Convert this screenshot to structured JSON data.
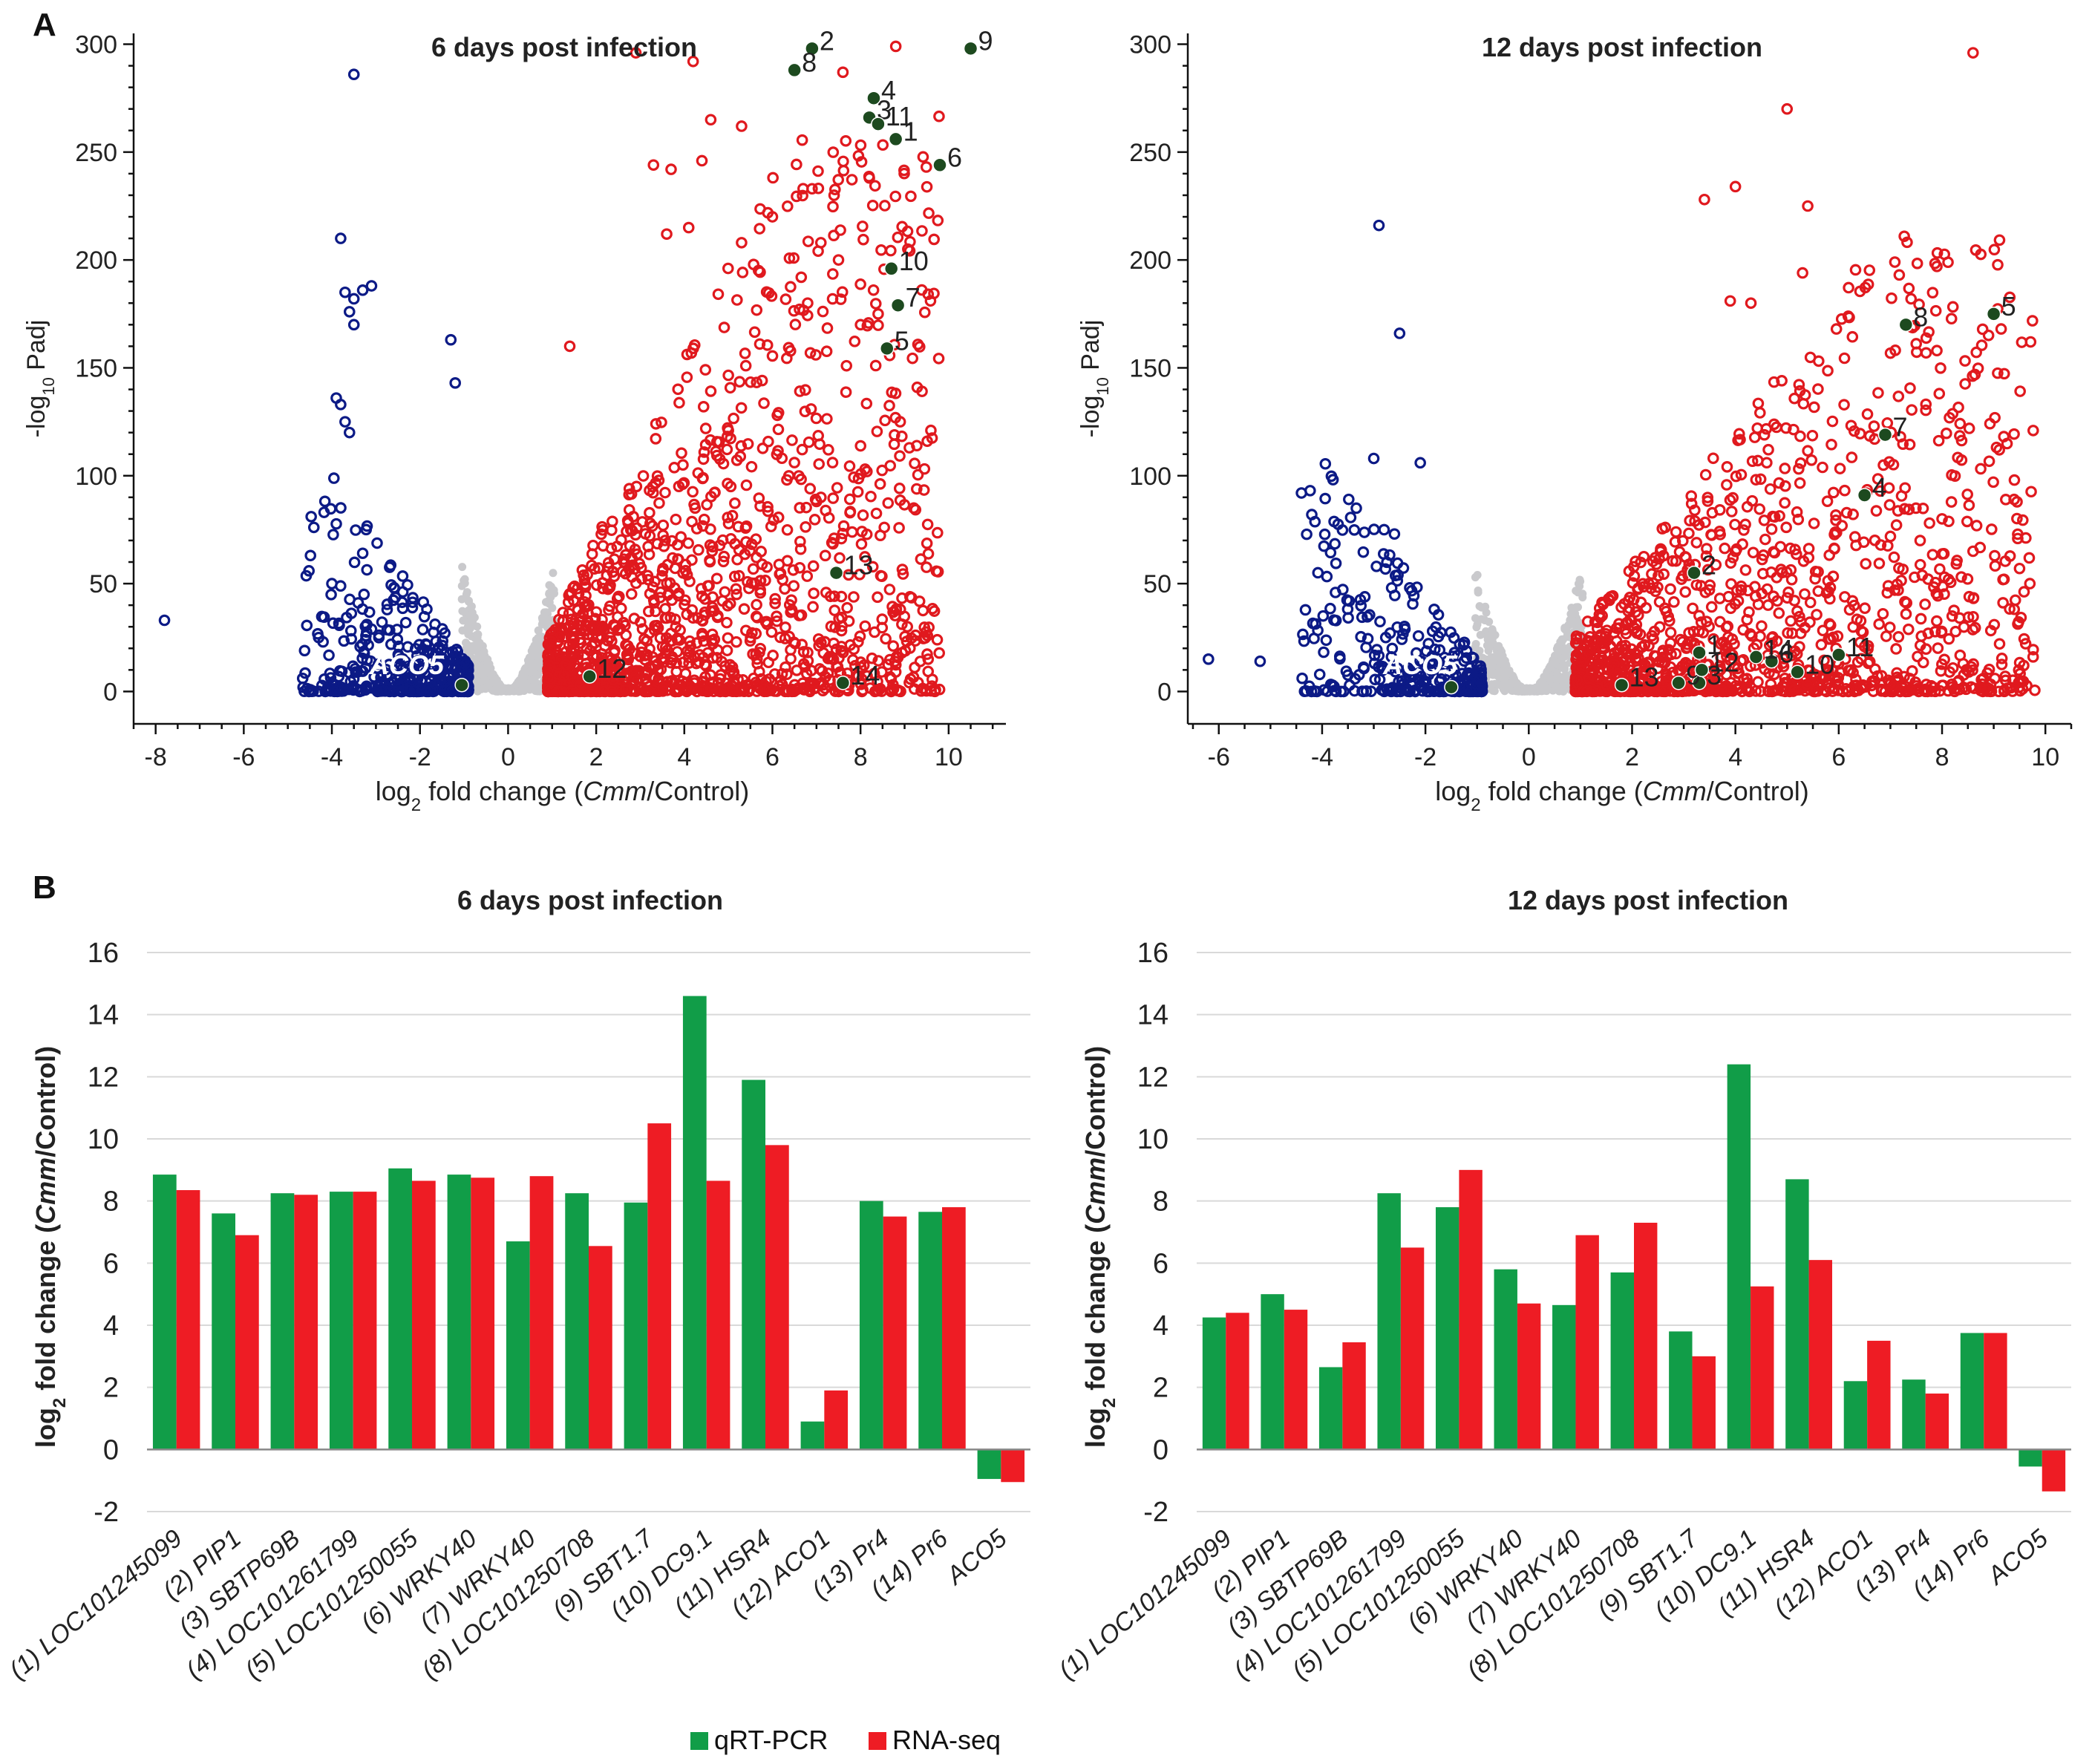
{
  "colors": {
    "up": "#e0191e",
    "down": "#0c1a86",
    "ns": "#c9c9cc",
    "highlight": "#1d4a1f",
    "qrt": "#119d48",
    "rnaseq": "#ee1c24",
    "axis": "#111111",
    "grid": "#d9d9d9"
  },
  "panel_labels": {
    "a": "A",
    "b": "B"
  },
  "genes": [
    "(1) LOC101245099",
    "(2) PIP1",
    "(3) SBTP69B",
    "(4) LOC101261799",
    "(5) LOC101250055",
    "(6) WRKY40",
    "(7) WRKY40",
    "(8) LOC101250708",
    "(9) SBT1.7",
    "(10) DC9.1",
    "(11) HSR4",
    "(12) ACO1",
    "(13) Pr4",
    "(14) Pr6",
    "ACO5"
  ],
  "legend": {
    "qrt": "qRT-PCR",
    "rnaseq": "RNA-seq"
  },
  "chart_data": [
    {
      "type": "scatter",
      "title": "6 days post infection",
      "xlabel_pre": "log",
      "xlabel_sub": "2",
      "xlabel_mid": " fold change (",
      "xlabel_italic": "Cmm",
      "xlabel_post": "/Control)",
      "ylabel_pre": "-log",
      "ylabel_sub": "10",
      "ylabel_post": " Padj",
      "xlim": [
        -8.5,
        11.3
      ],
      "ylim": [
        -15,
        305
      ],
      "xticks": [
        -8,
        -6,
        -4,
        -2,
        0,
        2,
        4,
        6,
        8,
        10
      ],
      "yticks": [
        0,
        50,
        100,
        150,
        200,
        250,
        300
      ],
      "gene_label": "ACO5",
      "gene_label_pos": [
        -2.3,
        8
      ],
      "highlights": [
        {
          "x": 8.8,
          "y": 256,
          "label": "1"
        },
        {
          "x": 6.9,
          "y": 298,
          "label": "2"
        },
        {
          "x": 8.2,
          "y": 266,
          "label": "3"
        },
        {
          "x": 8.3,
          "y": 275,
          "label": "4"
        },
        {
          "x": 8.6,
          "y": 159,
          "label": "5"
        },
        {
          "x": 9.8,
          "y": 244,
          "label": "6"
        },
        {
          "x": 8.85,
          "y": 179,
          "label": "7"
        },
        {
          "x": 6.5,
          "y": 288,
          "label": "8"
        },
        {
          "x": 10.5,
          "y": 298,
          "label": "9"
        },
        {
          "x": 8.7,
          "y": 196,
          "label": "10"
        },
        {
          "x": 8.4,
          "y": 263,
          "label": "11"
        },
        {
          "x": 1.85,
          "y": 7,
          "label": "12"
        },
        {
          "x": 7.45,
          "y": 55,
          "label": "13"
        },
        {
          "x": 7.6,
          "y": 4,
          "label": "14"
        },
        {
          "x": -1.05,
          "y": 3,
          "label": ""
        }
      ],
      "cloud": {
        "down_min": -4.7,
        "up_max": 9.8,
        "ns": 0.9,
        "up_n": 1500,
        "down_n": 430,
        "seed": 7
      },
      "up_outliers": [
        [
          2.9,
          296
        ],
        [
          4.2,
          292
        ],
        [
          8.8,
          299
        ],
        [
          7.6,
          287
        ],
        [
          5.3,
          262
        ],
        [
          4.6,
          265
        ],
        [
          3.3,
          244
        ],
        [
          3.7,
          242
        ],
        [
          4.4,
          246
        ],
        [
          6.9,
          233
        ],
        [
          7.4,
          230
        ],
        [
          8.2,
          238
        ],
        [
          6.0,
          220
        ],
        [
          5.3,
          208
        ],
        [
          4.1,
          215
        ],
        [
          3.6,
          212
        ],
        [
          7.1,
          208
        ],
        [
          7.5,
          200
        ],
        [
          6.8,
          180
        ],
        [
          8.4,
          175
        ],
        [
          1.4,
          160
        ],
        [
          8.0,
          170
        ],
        [
          7.4,
          71
        ],
        [
          7.2,
          63
        ]
      ],
      "down_outliers": [
        [
          -7.8,
          33
        ],
        [
          -3.5,
          286
        ],
        [
          -3.8,
          210
        ],
        [
          -3.7,
          185
        ],
        [
          -3.5,
          182
        ],
        [
          -3.3,
          186
        ],
        [
          -3.1,
          188
        ],
        [
          -3.6,
          176
        ],
        [
          -3.5,
          170
        ],
        [
          -1.3,
          163
        ],
        [
          -1.2,
          143
        ],
        [
          -3.9,
          136
        ],
        [
          -3.8,
          133
        ],
        [
          -3.7,
          125
        ],
        [
          -3.6,
          120
        ],
        [
          -4.0,
          50
        ],
        [
          -4.3,
          25
        ],
        [
          -4.2,
          23
        ]
      ]
    },
    {
      "type": "scatter",
      "title": "12 days post infection",
      "xlabel_pre": "log",
      "xlabel_sub": "2",
      "xlabel_mid": " fold change (",
      "xlabel_italic": "Cmm",
      "xlabel_post": "/Control)",
      "ylabel_pre": "-log",
      "ylabel_sub": "10",
      "ylabel_post": " Padj",
      "xlim": [
        -6.6,
        10.5
      ],
      "ylim": [
        -15,
        305
      ],
      "xticks": [
        -6,
        -4,
        -2,
        0,
        2,
        4,
        6,
        8,
        10
      ],
      "yticks": [
        0,
        50,
        100,
        150,
        200,
        250,
        300
      ],
      "gene_label": "ACO5",
      "gene_label_pos": [
        -2.1,
        8
      ],
      "highlights": [
        {
          "x": 3.3,
          "y": 18,
          "label": "1"
        },
        {
          "x": 3.2,
          "y": 55,
          "label": "2"
        },
        {
          "x": 3.3,
          "y": 4,
          "label": "3"
        },
        {
          "x": 6.5,
          "y": 91,
          "label": "4"
        },
        {
          "x": 9.0,
          "y": 175,
          "label": "5"
        },
        {
          "x": 4.7,
          "y": 14,
          "label": "6"
        },
        {
          "x": 6.9,
          "y": 119,
          "label": "7"
        },
        {
          "x": 7.3,
          "y": 170,
          "label": "8"
        },
        {
          "x": 2.9,
          "y": 4,
          "label": "9"
        },
        {
          "x": 5.2,
          "y": 9,
          "label": "10"
        },
        {
          "x": 6.0,
          "y": 17,
          "label": "11"
        },
        {
          "x": 3.35,
          "y": 10,
          "label": "12"
        },
        {
          "x": 1.8,
          "y": 3,
          "label": "13"
        },
        {
          "x": 4.4,
          "y": 16,
          "label": "14"
        },
        {
          "x": -1.5,
          "y": 2,
          "label": ""
        }
      ],
      "cloud": {
        "down_min": -4.4,
        "up_max": 9.8,
        "ns": 0.9,
        "up_n": 1300,
        "down_n": 330,
        "seed": 13
      },
      "up_outliers": [
        [
          5.0,
          270
        ],
        [
          8.6,
          296
        ],
        [
          4.0,
          234
        ],
        [
          3.4,
          228
        ],
        [
          5.4,
          225
        ],
        [
          5.3,
          194
        ],
        [
          7.9,
          197
        ],
        [
          9.4,
          98
        ],
        [
          9.5,
          57
        ],
        [
          9.7,
          50
        ],
        [
          9.2,
          52
        ],
        [
          8.6,
          65
        ],
        [
          8.0,
          80
        ],
        [
          7.9,
          158
        ],
        [
          7.4,
          182
        ],
        [
          3.9,
          181
        ],
        [
          4.3,
          180
        ]
      ],
      "down_outliers": [
        [
          -6.2,
          15
        ],
        [
          -5.2,
          14
        ],
        [
          -2.9,
          216
        ],
        [
          -2.5,
          166
        ],
        [
          -3.0,
          108
        ],
        [
          -2.1,
          106
        ],
        [
          -4.4,
          92
        ],
        [
          -4.2,
          82
        ],
        [
          -2.8,
          75
        ],
        [
          -2.6,
          73
        ]
      ]
    },
    {
      "type": "bar",
      "title": "6 days post infection",
      "ylabel_pre": "log",
      "ylabel_sub": "2",
      "ylabel_mid": " fold change (",
      "ylabel_italic": "Cmm",
      "ylabel_post": "/Control)",
      "ylim": [
        -2,
        16
      ],
      "yticks": [
        -2,
        0,
        2,
        4,
        6,
        8,
        10,
        12,
        14,
        16
      ],
      "series": [
        {
          "name": "qRT-PCR",
          "values": [
            8.85,
            7.6,
            8.25,
            8.3,
            9.05,
            8.85,
            6.7,
            8.25,
            7.95,
            14.6,
            11.9,
            0.9,
            8.0,
            7.65,
            -0.95
          ]
        },
        {
          "name": "RNA-seq",
          "values": [
            8.35,
            6.9,
            8.2,
            8.3,
            8.65,
            8.75,
            8.8,
            6.55,
            10.5,
            8.65,
            9.8,
            1.9,
            7.5,
            7.8,
            -1.05
          ]
        }
      ]
    },
    {
      "type": "bar",
      "title": "12 days post infection",
      "ylabel_pre": "log",
      "ylabel_sub": "2",
      "ylabel_mid": " fold change (",
      "ylabel_italic": "Cmm",
      "ylabel_post": "/Control)",
      "ylim": [
        -2,
        16
      ],
      "yticks": [
        -2,
        0,
        2,
        4,
        6,
        8,
        10,
        12,
        14,
        16
      ],
      "series": [
        {
          "name": "qRT-PCR",
          "values": [
            4.25,
            5.0,
            2.65,
            8.25,
            7.8,
            5.8,
            4.65,
            5.7,
            3.8,
            12.4,
            8.7,
            2.2,
            2.25,
            3.75,
            -0.55
          ]
        },
        {
          "name": "RNA-seq",
          "values": [
            4.4,
            4.5,
            3.45,
            6.5,
            9.0,
            4.7,
            6.9,
            7.3,
            3.0,
            5.25,
            6.1,
            3.5,
            1.8,
            3.75,
            -1.35
          ]
        }
      ]
    }
  ]
}
